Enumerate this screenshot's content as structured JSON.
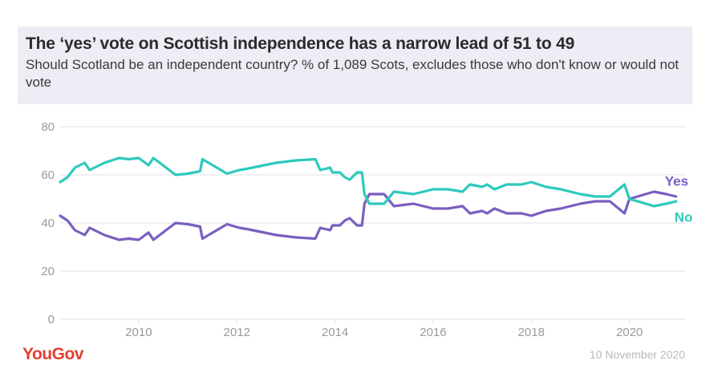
{
  "header": {
    "title": "The ‘yes’ vote on Scottish independence has a narrow lead of 51 to 49",
    "subtitle": "Should Scotland be an independent country? % of 1,089 Scots, excludes those who don't know or would not vote"
  },
  "footer": {
    "logo": "YouGov",
    "date": "10 November 2020"
  },
  "colors": {
    "yes": "#7a5fc0",
    "no": "#2ec9bd",
    "grid": "#e2e2e2",
    "axis_text": "#9a9a9a"
  },
  "chart_data": {
    "type": "line",
    "title": "The ‘yes’ vote on Scottish independence has a narrow lead of 51 to 49",
    "xlabel": "",
    "ylabel": "",
    "xlim": [
      2008.4,
      2021.15
    ],
    "ylim": [
      0,
      80
    ],
    "yticks": [
      "0",
      "20",
      "40",
      "60",
      "80"
    ],
    "yticks_values": [
      0,
      20,
      40,
      60,
      80
    ],
    "xticks": [
      "2010",
      "2012",
      "2014",
      "2016",
      "2018",
      "2020"
    ],
    "xticks_values": [
      2010,
      2012,
      2014,
      2016,
      2018,
      2020
    ],
    "grid": true,
    "series": [
      {
        "name": "Yes",
        "color": "#7a5fc0",
        "x": [
          2008.4,
          2008.55,
          2008.7,
          2008.9,
          2009.0,
          2009.3,
          2009.6,
          2009.8,
          2010.0,
          2010.2,
          2010.3,
          2010.75,
          2011.0,
          2011.25,
          2011.3,
          2011.8,
          2012.05,
          2012.2,
          2012.8,
          2013.2,
          2013.6,
          2013.7,
          2013.9,
          2013.95,
          2014.1,
          2014.2,
          2014.3,
          2014.45,
          2014.55,
          2014.6,
          2014.7,
          2014.8,
          2015.0,
          2015.2,
          2015.6,
          2016.0,
          2016.3,
          2016.6,
          2016.75,
          2017.0,
          2017.1,
          2017.25,
          2017.5,
          2017.8,
          2018.0,
          2018.3,
          2018.6,
          2019.0,
          2019.3,
          2019.6,
          2019.9,
          2020.0,
          2020.5,
          2020.75,
          2020.95
        ],
        "values": [
          43,
          41,
          37,
          35,
          38,
          35,
          33,
          33.5,
          33,
          36,
          33,
          40,
          39.5,
          38.5,
          33.5,
          39.5,
          38,
          37.5,
          35,
          34,
          33.5,
          38,
          37,
          39,
          39,
          41,
          42,
          39,
          39,
          48,
          52,
          52,
          52,
          47,
          48,
          46,
          46,
          47,
          44,
          45,
          44,
          46,
          44,
          44,
          43,
          45,
          46,
          48,
          49,
          49,
          44,
          50,
          53,
          52,
          51
        ]
      },
      {
        "name": "No",
        "color": "#2ec9bd",
        "x": [
          2008.4,
          2008.55,
          2008.7,
          2008.9,
          2009.0,
          2009.3,
          2009.6,
          2009.8,
          2010.0,
          2010.2,
          2010.3,
          2010.75,
          2011.0,
          2011.25,
          2011.3,
          2011.8,
          2012.05,
          2012.2,
          2012.8,
          2013.2,
          2013.6,
          2013.7,
          2013.9,
          2013.95,
          2014.1,
          2014.2,
          2014.3,
          2014.45,
          2014.55,
          2014.6,
          2014.7,
          2014.8,
          2015.0,
          2015.2,
          2015.6,
          2016.0,
          2016.3,
          2016.6,
          2016.75,
          2017.0,
          2017.1,
          2017.25,
          2017.5,
          2017.8,
          2018.0,
          2018.3,
          2018.6,
          2019.0,
          2019.3,
          2019.6,
          2019.9,
          2020.0,
          2020.5,
          2020.75,
          2020.95
        ],
        "values": [
          57,
          59,
          63,
          65,
          62,
          65,
          67,
          66.5,
          67,
          64,
          67,
          60,
          60.5,
          61.5,
          66.5,
          60.5,
          62,
          62.5,
          65,
          66,
          66.5,
          62,
          63,
          61,
          61,
          59,
          58,
          61,
          61,
          52,
          48,
          48,
          48,
          53,
          52,
          54,
          54,
          53,
          56,
          55,
          56,
          54,
          56,
          56,
          57,
          55,
          54,
          52,
          51,
          51,
          56,
          50,
          47,
          48,
          49
        ]
      }
    ],
    "annotations": [
      {
        "label": "Yes",
        "series": "Yes"
      },
      {
        "label": "No",
        "series": "No"
      }
    ]
  }
}
